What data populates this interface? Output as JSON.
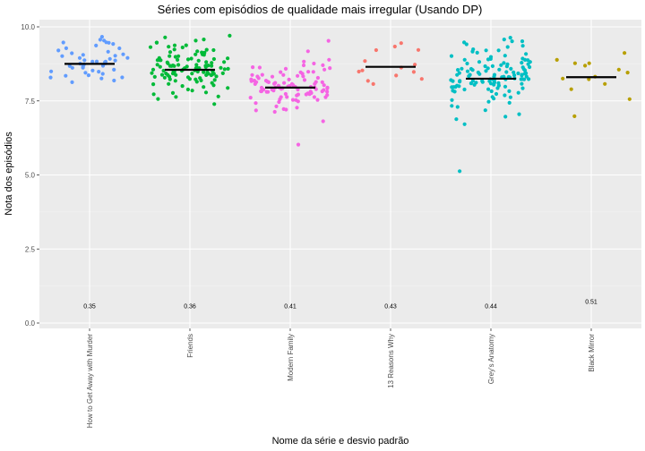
{
  "chart_data": {
    "type": "scatter",
    "title": "Séries com episódios de qualidade mais irregular (Usando DP)",
    "xlabel": "Nome da série e desvio padrão",
    "ylabel": "Nota dos episódios",
    "ylim": [
      0,
      10
    ],
    "yticks": [
      "0.0",
      "2.5",
      "5.0",
      "7.5",
      "10.0"
    ],
    "grid": true,
    "legend": "none",
    "categories": [
      "How to Get Away with Murder",
      "Friends",
      "Modern Family",
      "13 Reasons Why",
      "Grey's Anatomy",
      "Black Mirror"
    ],
    "sd_labels": [
      "0.35",
      "0.36",
      "0.41",
      "0.43",
      "0.44",
      "0.51"
    ],
    "medians": [
      8.75,
      8.55,
      7.95,
      8.65,
      8.25,
      8.3
    ],
    "colors": [
      "#619CFF",
      "#00BA38",
      "#F564E3",
      "#F8766D",
      "#00BFC4",
      "#B79F00"
    ],
    "series": [
      {
        "values": [
          9.65,
          9.6,
          9.55,
          9.5,
          9.5,
          9.45,
          9.4,
          9.35,
          9.3,
          9.3,
          9.2,
          9.15,
          9.1,
          9.1,
          9.05,
          9.0,
          9.0,
          8.95,
          8.95,
          8.9,
          8.9,
          8.85,
          8.85,
          8.8,
          8.8,
          8.8,
          8.75,
          8.75,
          8.7,
          8.7,
          8.65,
          8.65,
          8.6,
          8.6,
          8.55,
          8.55,
          8.5,
          8.5,
          8.45,
          8.4,
          8.4,
          8.35,
          8.3,
          8.3,
          8.25,
          8.2,
          8.15
        ]
      },
      {
        "values": [
          9.7,
          9.65,
          9.6,
          9.55,
          9.5,
          9.45,
          9.4,
          9.4,
          9.35,
          9.3,
          9.3,
          9.25,
          9.25,
          9.2,
          9.2,
          9.15,
          9.15,
          9.1,
          9.1,
          9.1,
          9.05,
          9.05,
          9.0,
          9.0,
          9.0,
          8.95,
          8.95,
          8.95,
          8.9,
          8.9,
          8.9,
          8.85,
          8.85,
          8.85,
          8.85,
          8.8,
          8.8,
          8.8,
          8.8,
          8.75,
          8.75,
          8.75,
          8.75,
          8.7,
          8.7,
          8.7,
          8.7,
          8.7,
          8.65,
          8.65,
          8.65,
          8.65,
          8.65,
          8.6,
          8.6,
          8.6,
          8.6,
          8.6,
          8.6,
          8.55,
          8.55,
          8.55,
          8.55,
          8.55,
          8.55,
          8.5,
          8.5,
          8.5,
          8.5,
          8.5,
          8.5,
          8.45,
          8.45,
          8.45,
          8.45,
          8.45,
          8.4,
          8.4,
          8.4,
          8.4,
          8.4,
          8.35,
          8.35,
          8.35,
          8.35,
          8.3,
          8.3,
          8.3,
          8.3,
          8.25,
          8.25,
          8.25,
          8.2,
          8.2,
          8.2,
          8.15,
          8.15,
          8.1,
          8.1,
          8.05,
          8.05,
          8.0,
          8.0,
          7.95,
          7.9,
          7.85,
          7.8,
          7.75,
          7.7,
          7.65,
          7.6,
          7.6,
          7.4
        ]
      },
      {
        "values": [
          9.55,
          9.2,
          8.9,
          8.8,
          8.75,
          8.7,
          8.7,
          8.65,
          8.6,
          8.6,
          8.55,
          8.55,
          8.5,
          8.5,
          8.45,
          8.45,
          8.4,
          8.4,
          8.4,
          8.35,
          8.35,
          8.3,
          8.3,
          8.3,
          8.25,
          8.25,
          8.25,
          8.2,
          8.2,
          8.2,
          8.2,
          8.15,
          8.15,
          8.15,
          8.15,
          8.1,
          8.1,
          8.1,
          8.1,
          8.1,
          8.05,
          8.05,
          8.05,
          8.05,
          8.05,
          8.0,
          8.0,
          8.0,
          8.0,
          8.0,
          8.0,
          7.95,
          7.95,
          7.95,
          7.95,
          7.95,
          7.95,
          7.9,
          7.9,
          7.9,
          7.9,
          7.9,
          7.85,
          7.85,
          7.85,
          7.85,
          7.85,
          7.8,
          7.8,
          7.8,
          7.8,
          7.8,
          7.75,
          7.75,
          7.75,
          7.75,
          7.7,
          7.7,
          7.7,
          7.7,
          7.65,
          7.65,
          7.65,
          7.6,
          7.6,
          7.6,
          7.55,
          7.55,
          7.5,
          7.5,
          7.45,
          7.45,
          7.4,
          7.35,
          7.3,
          7.25,
          7.2,
          7.2,
          7.15,
          6.8,
          6.0
        ]
      },
      {
        "values": [
          9.45,
          9.3,
          9.2,
          9.2,
          8.85,
          8.75,
          8.65,
          8.55,
          8.5,
          8.45,
          8.35,
          8.25,
          8.2,
          8.1
        ]
      },
      {
        "values": [
          9.6,
          9.6,
          9.55,
          9.5,
          9.45,
          9.4,
          9.35,
          9.3,
          9.25,
          9.2,
          9.2,
          9.15,
          9.1,
          9.1,
          9.05,
          9.0,
          9.0,
          8.95,
          8.95,
          8.9,
          8.9,
          8.85,
          8.85,
          8.85,
          8.8,
          8.8,
          8.8,
          8.75,
          8.75,
          8.75,
          8.7,
          8.7,
          8.7,
          8.65,
          8.65,
          8.65,
          8.6,
          8.6,
          8.6,
          8.6,
          8.55,
          8.55,
          8.55,
          8.55,
          8.5,
          8.5,
          8.5,
          8.5,
          8.45,
          8.45,
          8.45,
          8.45,
          8.4,
          8.4,
          8.4,
          8.4,
          8.4,
          8.35,
          8.35,
          8.35,
          8.35,
          8.35,
          8.3,
          8.3,
          8.3,
          8.3,
          8.3,
          8.3,
          8.25,
          8.25,
          8.25,
          8.25,
          8.25,
          8.25,
          8.2,
          8.2,
          8.2,
          8.2,
          8.2,
          8.2,
          8.15,
          8.15,
          8.15,
          8.15,
          8.15,
          8.1,
          8.1,
          8.1,
          8.1,
          8.1,
          8.05,
          8.05,
          8.05,
          8.05,
          8.0,
          8.0,
          8.0,
          8.0,
          7.95,
          7.95,
          7.95,
          7.9,
          7.9,
          7.9,
          7.85,
          7.85,
          7.8,
          7.8,
          7.75,
          7.75,
          7.7,
          7.65,
          7.6,
          7.55,
          7.5,
          7.45,
          7.4,
          7.3,
          7.3,
          7.2,
          7.05,
          6.95,
          6.9,
          6.7,
          5.15
        ]
      },
      {
        "values": [
          9.1,
          8.85,
          8.8,
          8.75,
          8.7,
          8.55,
          8.45,
          8.3,
          8.25,
          8.2,
          8.1,
          7.9,
          7.55,
          7.0
        ]
      }
    ]
  }
}
